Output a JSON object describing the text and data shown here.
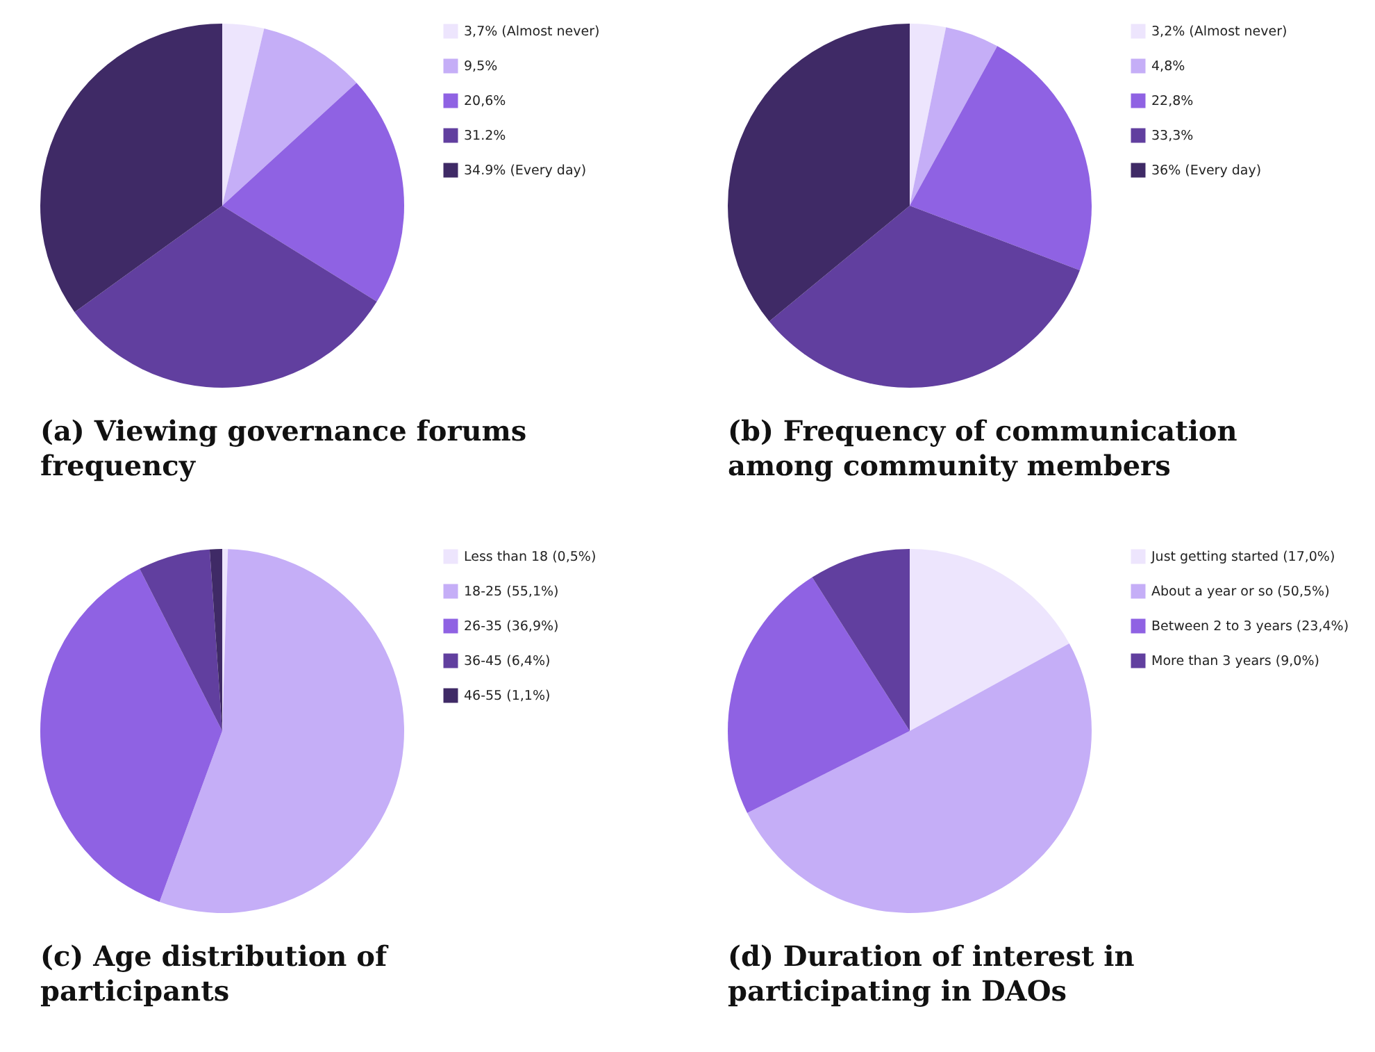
{
  "chart_data": [
    {
      "type": "pie",
      "title": "(a) Viewing governance forums frequency",
      "categories": [
        "3,7% (Almost never)",
        "9,5%",
        "20,6%",
        "31.2%",
        "34.9% (Every day)"
      ],
      "values": [
        3.7,
        9.5,
        20.6,
        31.2,
        34.9
      ],
      "colors": [
        "#ede5fd",
        "#c5aef7",
        "#8f62e3",
        "#613f9f",
        "#3f2a66"
      ],
      "legend": "right"
    },
    {
      "type": "pie",
      "title": "(b) Frequency of communication among community members",
      "categories": [
        "3,2% (Almost never)",
        "4,8%",
        "22,8%",
        "33,3%",
        "36% (Every day)"
      ],
      "values": [
        3.2,
        4.8,
        22.8,
        33.3,
        36
      ],
      "colors": [
        "#ede5fd",
        "#c5aef7",
        "#8f62e3",
        "#613f9f",
        "#3f2a66"
      ],
      "legend": "right"
    },
    {
      "type": "pie",
      "title": "(c) Age distribution of participants",
      "categories": [
        "Less than 18 (0,5%)",
        "18-25 (55,1%)",
        "26-35 (36,9%)",
        "36-45 (6,4%)",
        "46-55 (1,1%)"
      ],
      "values": [
        0.5,
        55.1,
        36.9,
        6.4,
        1.1
      ],
      "colors": [
        "#ede5fd",
        "#c5aef7",
        "#8f62e3",
        "#613f9f",
        "#3f2a66"
      ],
      "legend": "right"
    },
    {
      "type": "pie",
      "title": "(d) Duration of interest in participating in DAOs",
      "categories": [
        "Just getting started (17,0%)",
        "About a year or so (50,5%)",
        "Between 2 to 3 years (23,4%)",
        "More than 3 years (9,0%)"
      ],
      "values": [
        17.0,
        50.5,
        23.4,
        9.0
      ],
      "colors": [
        "#ede5fd",
        "#c5aef7",
        "#8f62e3",
        "#613f9f"
      ],
      "legend": "right"
    }
  ]
}
